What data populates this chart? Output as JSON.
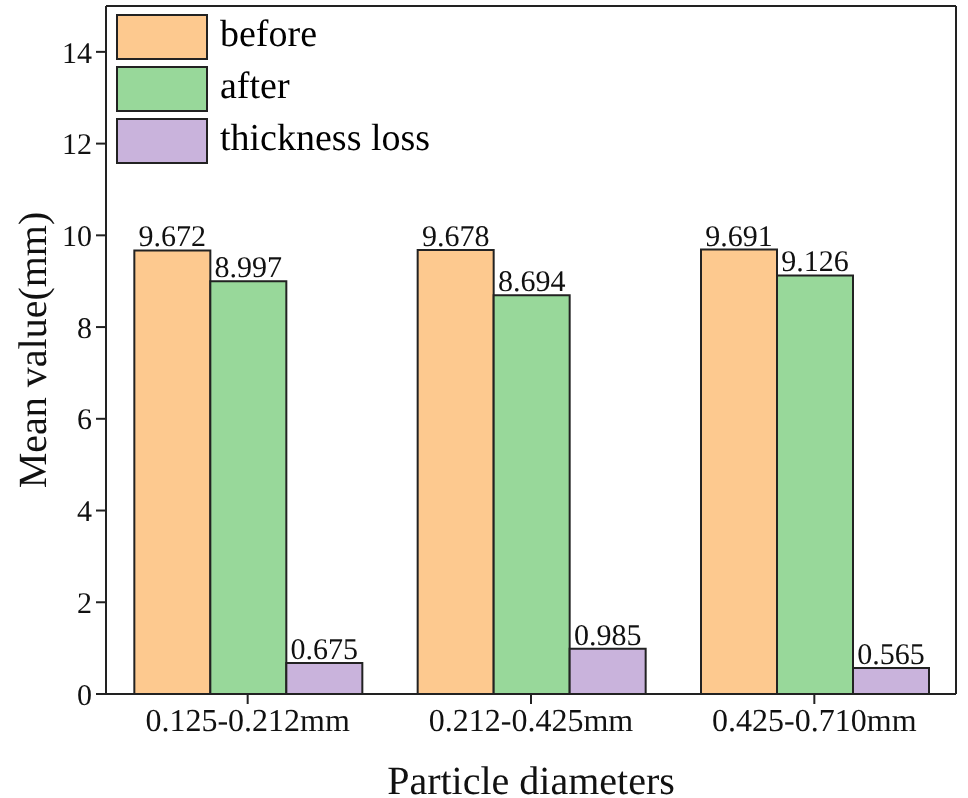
{
  "chart_data": {
    "type": "bar",
    "xlabel": "Particle diameters",
    "ylabel": "Mean value(mm)",
    "categories": [
      "0.125-0.212mm",
      "0.212-0.425mm",
      "0.425-0.710mm"
    ],
    "series": [
      {
        "name": "before",
        "color": "#fdc98f",
        "values": [
          9.672,
          9.678,
          9.691
        ]
      },
      {
        "name": "after",
        "color": "#98d89a",
        "values": [
          8.997,
          8.694,
          9.126
        ]
      },
      {
        "name": "thickness loss",
        "color": "#c9b3dc",
        "values": [
          0.675,
          0.985,
          0.565
        ]
      }
    ],
    "ylim": [
      0,
      15
    ],
    "yticks": [
      0,
      2,
      4,
      6,
      8,
      10,
      12,
      14
    ],
    "data_labels": true,
    "legend": "top left",
    "grid": false
  }
}
